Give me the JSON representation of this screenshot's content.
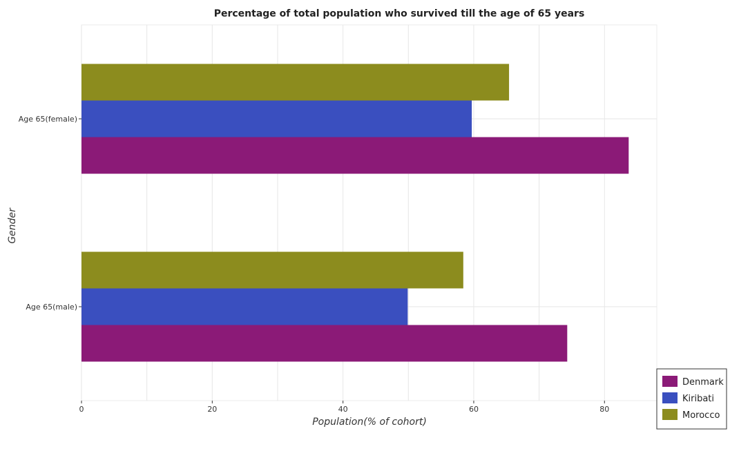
{
  "chart_data": {
    "type": "bar",
    "orientation": "horizontal",
    "title": "Percentage of total population who survived till the age of 65 years",
    "xlabel": "Population(% of cohort)",
    "ylabel": "Gender",
    "categories": [
      "Age 65(female)",
      "Age 65(male)"
    ],
    "series": [
      {
        "name": "Denmark",
        "color": "#8B1A77",
        "values": [
          83.7,
          74.3
        ]
      },
      {
        "name": "Kiribati",
        "color": "#3A4FBF",
        "values": [
          59.7,
          49.9
        ]
      },
      {
        "name": "Morocco",
        "color": "#8C8C1E",
        "values": [
          65.4,
          58.4
        ]
      }
    ],
    "xlim": [
      0,
      88
    ],
    "xticks": [
      0,
      20,
      40,
      60,
      80
    ],
    "grid": true,
    "legend_position": "bottom-right"
  }
}
